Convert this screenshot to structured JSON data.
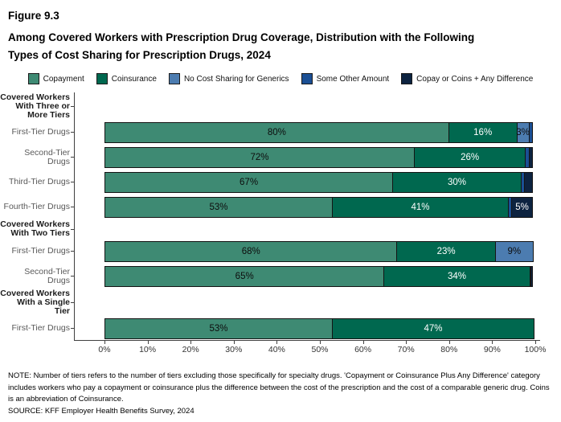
{
  "figure": {
    "label": "Figure 9.3",
    "title_line1": "Among Covered Workers with Prescription Drug Coverage, Distribution with the Following",
    "title_line2": "Types of Cost Sharing for Prescription Drugs, 2024"
  },
  "legend": [
    {
      "name": "copayment-swatch",
      "label": "Copayment",
      "color": "#3E8A73"
    },
    {
      "name": "coinsurance-swatch",
      "label": "Coinsurance",
      "color": "#00684F"
    },
    {
      "name": "no-cost-sharing-swatch",
      "label": "No Cost Sharing for Generics",
      "color": "#4C7CB0"
    },
    {
      "name": "some-other-amount-swatch",
      "label": "Some Other Amount",
      "color": "#1B4F94"
    },
    {
      "name": "copay-coins-difference-swatch",
      "label": "Copay or Coins + Any Difference",
      "color": "#0D2340"
    }
  ],
  "chart_data": {
    "type": "bar",
    "orientation": "horizontal",
    "stacked": true,
    "title": "Among Covered Workers with Prescription Drug Coverage, Distribution with the Following Types of Cost Sharing for Prescription Drugs, 2024",
    "xlabel": "",
    "ylabel": "",
    "xlim": [
      0,
      100
    ],
    "x_ticks": [
      "0%",
      "10%",
      "20%",
      "30%",
      "40%",
      "50%",
      "60%",
      "70%",
      "80%",
      "90%",
      "100%"
    ],
    "legend_position": "top",
    "grid": false,
    "series_names": [
      "Copayment",
      "Coinsurance",
      "No Cost Sharing for Generics",
      "Some Other Amount",
      "Copay or Coins + Any Difference"
    ],
    "series": [
      {
        "name": "Copayment",
        "values": [
          80,
          72,
          67,
          53,
          68,
          65,
          53
        ]
      },
      {
        "name": "Coinsurance",
        "values": [
          16,
          26,
          30,
          41,
          23,
          34,
          47
        ]
      },
      {
        "name": "No Cost Sharing for Generics",
        "values": [
          3,
          0,
          0,
          0,
          9,
          0,
          0
        ]
      },
      {
        "name": "Some Other Amount",
        "values": [
          1,
          1,
          1,
          1,
          0,
          0.5,
          0
        ]
      },
      {
        "name": "Copay or Coins + Any Difference",
        "values": [
          0,
          1,
          2,
          5,
          0,
          0.5,
          0
        ]
      }
    ],
    "rows": [
      {
        "type": "group",
        "size": "group3",
        "label_lines": [
          "Covered Workers",
          "With Three or",
          "More Tiers"
        ]
      },
      {
        "type": "bar",
        "label": "First-Tier Drugs",
        "values": [
          80,
          16,
          3,
          1,
          0
        ],
        "value_labels": [
          "80%",
          "16%",
          "3%",
          "",
          ""
        ]
      },
      {
        "type": "bar",
        "label": "Second-Tier Drugs",
        "values": [
          72,
          26,
          0,
          1,
          1
        ],
        "value_labels": [
          "72%",
          "26%",
          "",
          "",
          ""
        ]
      },
      {
        "type": "bar",
        "label": "Third-Tier Drugs",
        "values": [
          67,
          30,
          0,
          1,
          2
        ],
        "value_labels": [
          "67%",
          "30%",
          "",
          "",
          ""
        ]
      },
      {
        "type": "bar",
        "label": "Fourth-Tier Drugs",
        "values": [
          53,
          41,
          0,
          1,
          5
        ],
        "value_labels": [
          "53%",
          "41%",
          "",
          "",
          "5%"
        ]
      },
      {
        "type": "group",
        "size": "group2",
        "label_lines": [
          "Covered Workers",
          "With Two Tiers"
        ]
      },
      {
        "type": "bar",
        "label": "First-Tier Drugs",
        "values": [
          68,
          23,
          9,
          0,
          0
        ],
        "value_labels": [
          "68%",
          "23%",
          "9%",
          "",
          ""
        ]
      },
      {
        "type": "bar",
        "label": "Second-Tier Drugs",
        "values": [
          65,
          34,
          0,
          0.5,
          0.5
        ],
        "value_labels": [
          "65%",
          "34%",
          "",
          "",
          ""
        ]
      },
      {
        "type": "group",
        "size": "group3",
        "label_lines": [
          "Covered Workers",
          "With a Single",
          "Tier"
        ]
      },
      {
        "type": "bar",
        "label": "First-Tier Drugs",
        "values": [
          53,
          47,
          0,
          0,
          0
        ],
        "value_labels": [
          "53%",
          "47%",
          "",
          "",
          ""
        ]
      }
    ]
  },
  "notes": {
    "note": "NOTE: Number of tiers refers to the number of tiers excluding those specifically for specialty drugs. 'Copayment or Coinsurance Plus Any Difference' category includes workers who pay a copayment or coinsurance plus the difference between the cost of the prescription and the cost of a comparable generic drug.  Coins is an abbreviation of Coinsurance.",
    "source": "SOURCE: KFF Employer Health Benefits Survey, 2024"
  }
}
